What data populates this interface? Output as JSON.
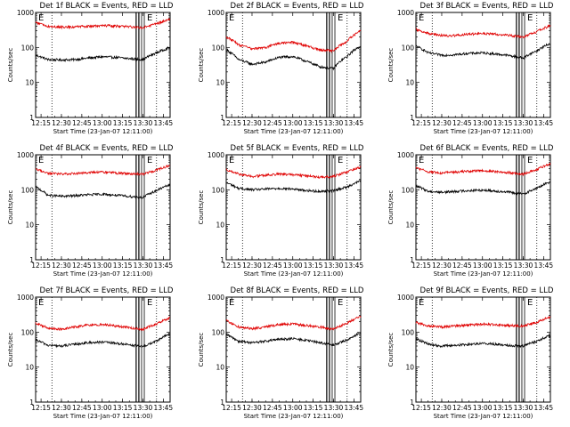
{
  "chart_data": [
    {
      "type": "line",
      "title": "Det 1f BLACK = Events, RED = LLD",
      "xlabel": "Start Time (23-Jan-07 12:11:00)",
      "ylabel": "Counts/sec",
      "yscale": "log",
      "ylim": [
        1,
        1000
      ],
      "xlim": [
        "12:11",
        "13:50"
      ],
      "xticklabels": [
        "12:15",
        "12:30",
        "12:45",
        "13:00",
        "13:15",
        "13:30",
        "13:45"
      ],
      "yticklabels": [
        "1",
        "10",
        "100",
        "1000"
      ],
      "markers": [
        "E",
        "E"
      ],
      "series": [
        {
          "color": "#000000",
          "x": [
            "12:11",
            "12:20",
            "12:30",
            "12:40",
            "12:50",
            "13:00",
            "13:10",
            "13:20",
            "13:30",
            "13:40",
            "13:50"
          ],
          "values": [
            60,
            45,
            44,
            45,
            50,
            54,
            52,
            48,
            45,
            70,
            100
          ]
        },
        {
          "color": "#e00000",
          "x": [
            "12:11",
            "12:20",
            "12:30",
            "12:40",
            "12:50",
            "13:00",
            "13:10",
            "13:20",
            "13:30",
            "13:40",
            "13:50"
          ],
          "values": [
            520,
            400,
            380,
            390,
            400,
            420,
            410,
            390,
            370,
            470,
            640
          ]
        }
      ]
    },
    {
      "type": "line",
      "title": "Det 2f BLACK = Events, RED = LLD",
      "xlabel": "Start Time (23-Jan-07 12:11:00)",
      "ylabel": "Counts/sec",
      "yscale": "log",
      "ylim": [
        1,
        1000
      ],
      "xlim": [
        "12:11",
        "13:50"
      ],
      "xticklabels": [
        "12:15",
        "12:30",
        "12:45",
        "13:00",
        "13:15",
        "13:30",
        "13:45"
      ],
      "yticklabels": [
        "1",
        "10",
        "100",
        "1000"
      ],
      "markers": [
        "E",
        "E"
      ],
      "series": [
        {
          "color": "#000000",
          "x": [
            "12:11",
            "12:20",
            "12:30",
            "12:40",
            "12:50",
            "13:00",
            "13:10",
            "13:20",
            "13:30",
            "13:40",
            "13:50"
          ],
          "values": [
            85,
            45,
            33,
            38,
            52,
            55,
            40,
            28,
            25,
            55,
            110
          ]
        },
        {
          "color": "#e00000",
          "x": [
            "12:11",
            "12:20",
            "12:30",
            "12:40",
            "12:50",
            "13:00",
            "13:10",
            "13:20",
            "13:30",
            "13:40",
            "13:50"
          ],
          "values": [
            200,
            120,
            90,
            100,
            130,
            140,
            110,
            85,
            80,
            150,
            300
          ]
        }
      ]
    },
    {
      "type": "line",
      "title": "Det 3f BLACK = Events, RED = LLD",
      "xlabel": "Start Time (23-Jan-07 12:11:00)",
      "ylabel": "Counts/sec",
      "yscale": "log",
      "ylim": [
        1,
        1000
      ],
      "xlim": [
        "12:11",
        "13:50"
      ],
      "xticklabels": [
        "12:15",
        "12:30",
        "12:45",
        "13:00",
        "13:15",
        "13:30",
        "13:45"
      ],
      "yticklabels": [
        "1",
        "10",
        "100",
        "1000"
      ],
      "markers": [
        "E",
        "E"
      ],
      "series": [
        {
          "color": "#000000",
          "x": [
            "12:11",
            "12:20",
            "12:30",
            "12:40",
            "12:50",
            "13:00",
            "13:10",
            "13:20",
            "13:30",
            "13:40",
            "13:50"
          ],
          "values": [
            110,
            70,
            60,
            62,
            68,
            70,
            65,
            58,
            50,
            80,
            130
          ]
        },
        {
          "color": "#e00000",
          "x": [
            "12:11",
            "12:20",
            "12:30",
            "12:40",
            "12:50",
            "13:00",
            "13:10",
            "13:20",
            "13:30",
            "13:40",
            "13:50"
          ],
          "values": [
            330,
            250,
            220,
            220,
            240,
            250,
            240,
            220,
            200,
            280,
            420
          ]
        }
      ]
    },
    {
      "type": "line",
      "title": "Det 4f BLACK = Events, RED = LLD",
      "xlabel": "Start Time (23-Jan-07 12:11:00)",
      "ylabel": "Counts/sec",
      "yscale": "log",
      "ylim": [
        1,
        1000
      ],
      "xlim": [
        "12:11",
        "13:50"
      ],
      "xticklabels": [
        "12:15",
        "12:30",
        "12:45",
        "13:00",
        "13:15",
        "13:30",
        "13:45"
      ],
      "yticklabels": [
        "1",
        "10",
        "100",
        "1000"
      ],
      "markers": [
        "E",
        "E"
      ],
      "series": [
        {
          "color": "#000000",
          "x": [
            "12:11",
            "12:20",
            "12:30",
            "12:40",
            "12:50",
            "13:00",
            "13:10",
            "13:20",
            "13:30",
            "13:40",
            "13:50"
          ],
          "values": [
            120,
            70,
            65,
            68,
            72,
            75,
            70,
            65,
            60,
            95,
            140
          ]
        },
        {
          "color": "#e00000",
          "x": [
            "12:11",
            "12:20",
            "12:30",
            "12:40",
            "12:50",
            "13:00",
            "13:10",
            "13:20",
            "13:30",
            "13:40",
            "13:50"
          ],
          "values": [
            380,
            300,
            280,
            290,
            310,
            320,
            300,
            290,
            280,
            360,
            500
          ]
        }
      ]
    },
    {
      "type": "line",
      "title": "Det 5f BLACK = Events, RED = LLD",
      "xlabel": "Start Time (23-Jan-07 12:11:00)",
      "ylabel": "Counts/sec",
      "yscale": "log",
      "ylim": [
        1,
        1000
      ],
      "xlim": [
        "12:11",
        "13:50"
      ],
      "xticklabels": [
        "12:15",
        "12:30",
        "12:45",
        "13:00",
        "13:15",
        "13:30",
        "13:45"
      ],
      "yticklabels": [
        "1",
        "10",
        "100",
        "1000"
      ],
      "markers": [
        "E",
        "E"
      ],
      "series": [
        {
          "color": "#000000",
          "x": [
            "12:11",
            "12:20",
            "12:30",
            "12:40",
            "12:50",
            "13:00",
            "13:10",
            "13:20",
            "13:30",
            "13:40",
            "13:50"
          ],
          "values": [
            160,
            110,
            100,
            105,
            110,
            105,
            95,
            90,
            95,
            120,
            180
          ]
        },
        {
          "color": "#e00000",
          "x": [
            "12:11",
            "12:20",
            "12:30",
            "12:40",
            "12:50",
            "13:00",
            "13:10",
            "13:20",
            "13:30",
            "13:40",
            "13:50"
          ],
          "values": [
            380,
            280,
            240,
            260,
            280,
            270,
            250,
            230,
            240,
            320,
            450
          ]
        }
      ]
    },
    {
      "type": "line",
      "title": "Det 6f BLACK = Events, RED = LLD",
      "xlabel": "Start Time (23-Jan-07 12:11:00)",
      "ylabel": "Counts/sec",
      "yscale": "log",
      "ylim": [
        1,
        1000
      ],
      "xlim": [
        "12:11",
        "13:50"
      ],
      "xticklabels": [
        "12:15",
        "12:30",
        "12:45",
        "13:00",
        "13:15",
        "13:30",
        "13:45"
      ],
      "yticklabels": [
        "1",
        "10",
        "100",
        "1000"
      ],
      "markers": [
        "E",
        "E"
      ],
      "series": [
        {
          "color": "#000000",
          "x": [
            "12:11",
            "12:20",
            "12:30",
            "12:40",
            "12:50",
            "13:00",
            "13:10",
            "13:20",
            "13:30",
            "13:40",
            "13:50"
          ],
          "values": [
            130,
            90,
            85,
            90,
            95,
            98,
            92,
            85,
            75,
            110,
            170
          ]
        },
        {
          "color": "#e00000",
          "x": [
            "12:11",
            "12:20",
            "12:30",
            "12:40",
            "12:50",
            "13:00",
            "13:10",
            "13:20",
            "13:30",
            "13:40",
            "13:50"
          ],
          "values": [
            420,
            330,
            300,
            320,
            340,
            350,
            330,
            310,
            280,
            380,
            560
          ]
        }
      ]
    },
    {
      "type": "line",
      "title": "Det 7f BLACK = Events, RED = LLD",
      "xlabel": "Start Time (23-Jan-07 12:11:00)",
      "ylabel": "Counts/sec",
      "yscale": "log",
      "ylim": [
        1,
        1000
      ],
      "xlim": [
        "12:11",
        "13:50"
      ],
      "xticklabels": [
        "12:15",
        "12:30",
        "12:45",
        "13:00",
        "13:15",
        "13:30",
        "13:45"
      ],
      "yticklabels": [
        "1",
        "10",
        "100",
        "1000"
      ],
      "markers": [
        "E",
        "E"
      ],
      "series": [
        {
          "color": "#000000",
          "x": [
            "12:11",
            "12:20",
            "12:30",
            "12:40",
            "12:50",
            "13:00",
            "13:10",
            "13:20",
            "13:30",
            "13:40",
            "13:50"
          ],
          "values": [
            60,
            42,
            40,
            45,
            50,
            52,
            48,
            44,
            38,
            55,
            90
          ]
        },
        {
          "color": "#e00000",
          "x": [
            "12:11",
            "12:20",
            "12:30",
            "12:40",
            "12:50",
            "13:00",
            "13:10",
            "13:20",
            "13:30",
            "13:40",
            "13:50"
          ],
          "values": [
            180,
            130,
            120,
            140,
            160,
            165,
            150,
            135,
            120,
            170,
            260
          ]
        }
      ]
    },
    {
      "type": "line",
      "title": "Det 8f BLACK = Events, RED = LLD",
      "xlabel": "Start Time (23-Jan-07 12:11:00)",
      "ylabel": "Counts/sec",
      "yscale": "log",
      "ylim": [
        1,
        1000
      ],
      "xlim": [
        "12:11",
        "13:50"
      ],
      "xticklabels": [
        "12:15",
        "12:30",
        "12:45",
        "13:00",
        "13:15",
        "13:30",
        "13:45"
      ],
      "yticklabels": [
        "1",
        "10",
        "100",
        "1000"
      ],
      "markers": [
        "E",
        "E"
      ],
      "series": [
        {
          "color": "#000000",
          "x": [
            "12:11",
            "12:20",
            "12:30",
            "12:40",
            "12:50",
            "13:00",
            "13:10",
            "13:20",
            "13:30",
            "13:40",
            "13:50"
          ],
          "values": [
            85,
            55,
            50,
            55,
            62,
            65,
            58,
            50,
            42,
            60,
            95
          ]
        },
        {
          "color": "#e00000",
          "x": [
            "12:11",
            "12:20",
            "12:30",
            "12:40",
            "12:50",
            "13:00",
            "13:10",
            "13:20",
            "13:30",
            "13:40",
            "13:50"
          ],
          "values": [
            210,
            140,
            125,
            140,
            165,
            170,
            155,
            140,
            120,
            180,
            280
          ]
        }
      ]
    },
    {
      "type": "line",
      "title": "Det 9f BLACK = Events, RED = LLD",
      "xlabel": "Start Time (23-Jan-07 12:11:00)",
      "ylabel": "Counts/sec",
      "yscale": "log",
      "ylim": [
        1,
        1000
      ],
      "xlim": [
        "12:11",
        "13:50"
      ],
      "xticklabels": [
        "12:15",
        "12:30",
        "12:45",
        "13:00",
        "13:15",
        "13:30",
        "13:45"
      ],
      "yticklabels": [
        "1",
        "10",
        "100",
        "1000"
      ],
      "markers": [
        "E",
        "E"
      ],
      "series": [
        {
          "color": "#000000",
          "x": [
            "12:11",
            "12:20",
            "12:30",
            "12:40",
            "12:50",
            "13:00",
            "13:10",
            "13:20",
            "13:30",
            "13:40",
            "13:50"
          ],
          "values": [
            65,
            45,
            40,
            42,
            45,
            48,
            45,
            42,
            40,
            55,
            80
          ]
        },
        {
          "color": "#e00000",
          "x": [
            "12:11",
            "12:20",
            "12:30",
            "12:40",
            "12:50",
            "13:00",
            "13:10",
            "13:20",
            "13:30",
            "13:40",
            "13:50"
          ],
          "values": [
            190,
            150,
            140,
            150,
            160,
            170,
            165,
            155,
            150,
            190,
            270
          ]
        }
      ]
    }
  ]
}
